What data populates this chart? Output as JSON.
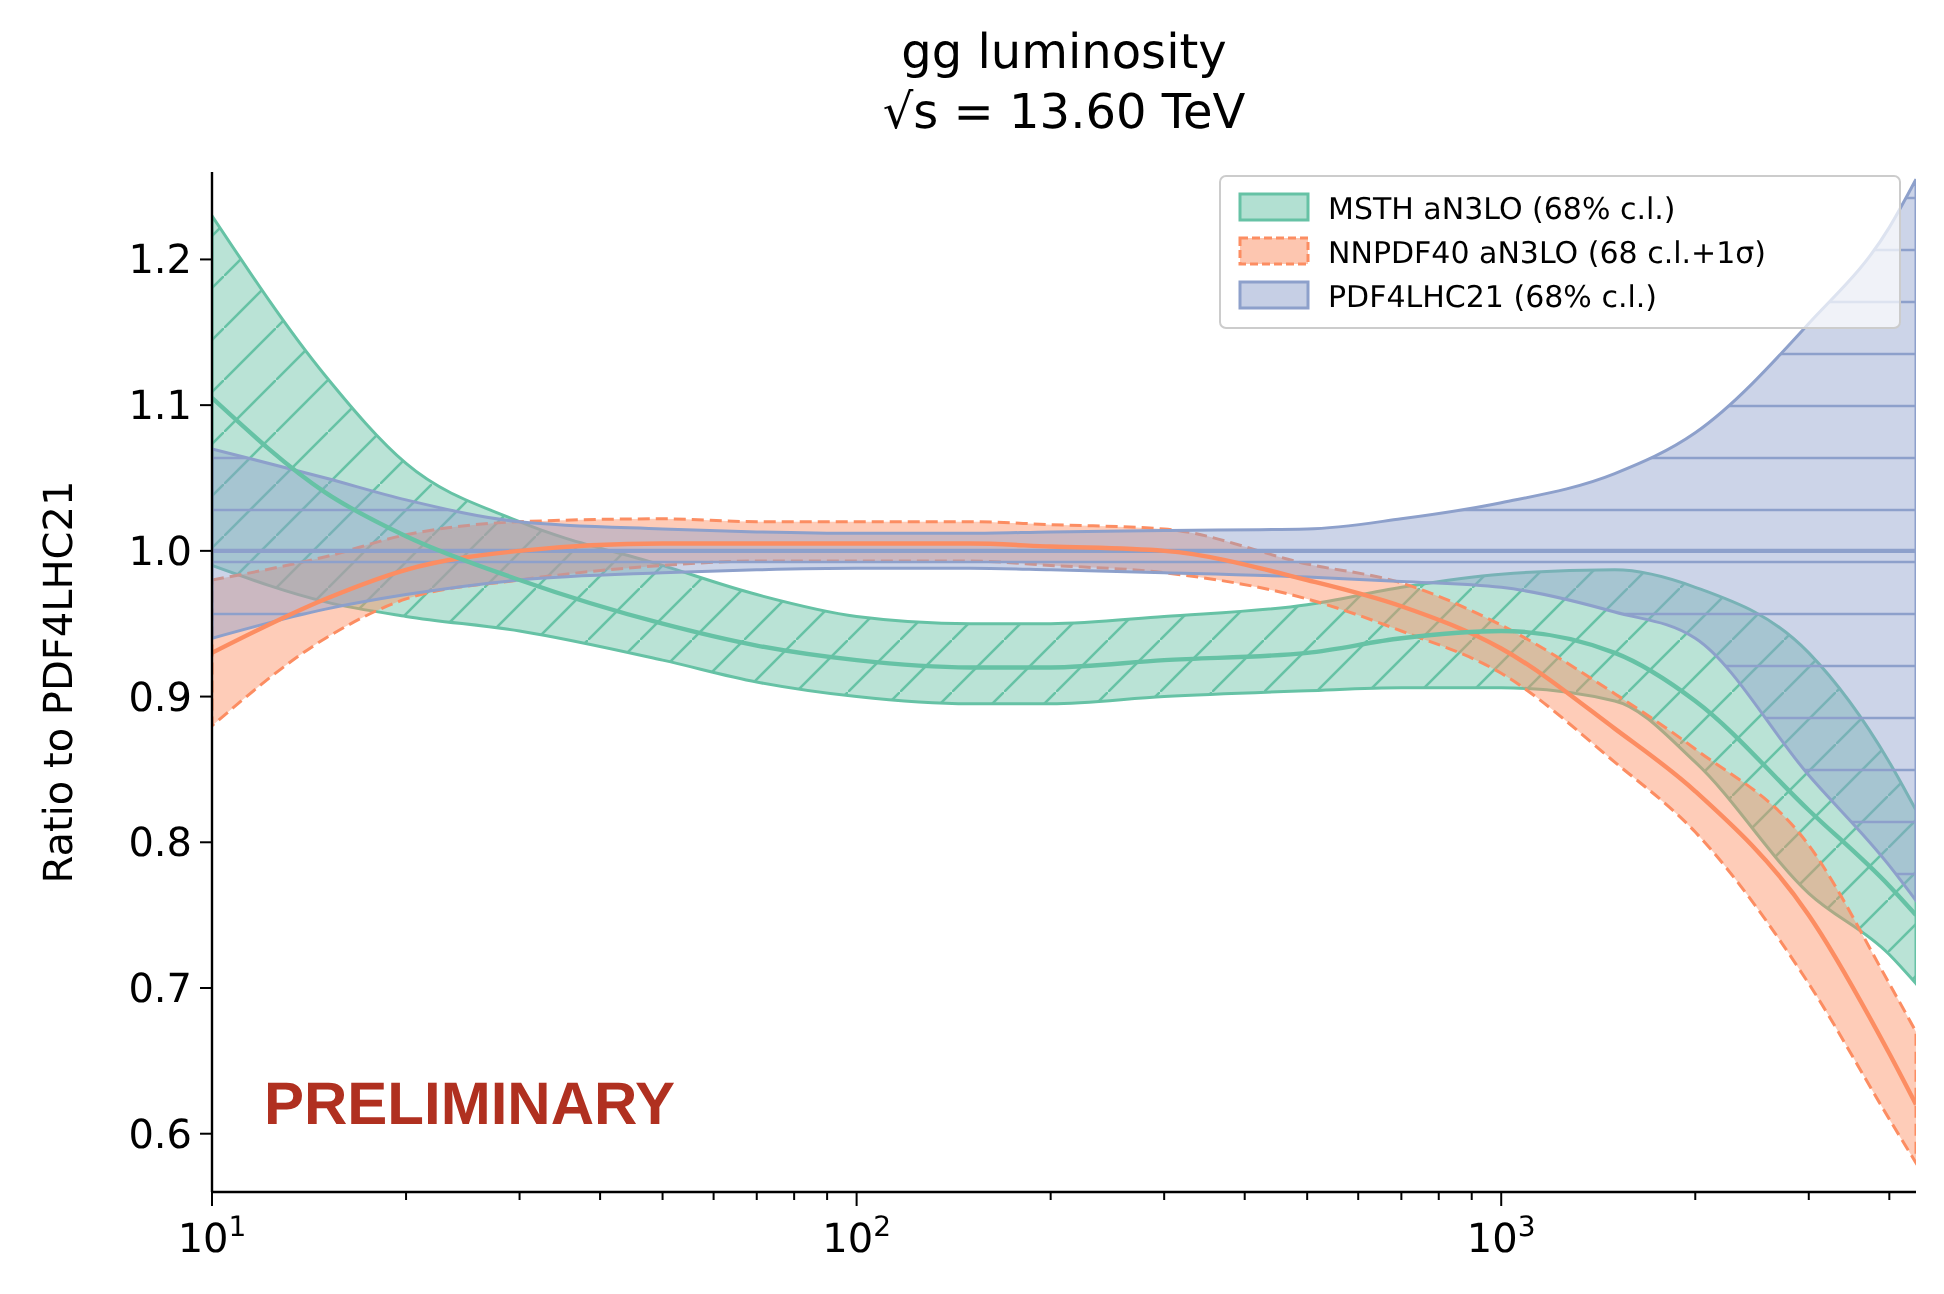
{
  "chart_data": {
    "type": "line",
    "title": "gg luminosity",
    "subtitle": "√s = 13.60 TeV",
    "ylabel": "Ratio to PDF4LHC21",
    "x": [
      10,
      15,
      20,
      30,
      50,
      70,
      100,
      150,
      200,
      300,
      500,
      700,
      1000,
      1500,
      2000,
      3000,
      4000,
      4400
    ],
    "xlim": [
      10,
      4400
    ],
    "log": "x",
    "xticks": [
      {
        "value": 10,
        "label": "10$^{1}$"
      },
      {
        "value": 20,
        "label": null
      },
      {
        "value": 30,
        "label": null
      },
      {
        "value": 40,
        "label": null
      },
      {
        "value": 50,
        "label": null
      },
      {
        "value": 60,
        "label": null
      },
      {
        "value": 70,
        "label": null
      },
      {
        "value": 80,
        "label": null
      },
      {
        "value": 90,
        "label": null
      },
      {
        "value": 100,
        "label": "10$^{2}$"
      },
      {
        "value": 200,
        "label": null
      },
      {
        "value": 300,
        "label": null
      },
      {
        "value": 400,
        "label": null
      },
      {
        "value": 500,
        "label": null
      },
      {
        "value": 600,
        "label": null
      },
      {
        "value": 700,
        "label": null
      },
      {
        "value": 800,
        "label": null
      },
      {
        "value": 900,
        "label": null
      },
      {
        "value": 1000,
        "label": "10$^{3}$"
      },
      {
        "value": 2000,
        "label": null
      },
      {
        "value": 3000,
        "label": null
      },
      {
        "value": 4000,
        "label": null
      }
    ],
    "ylim": [
      0.56,
      1.26
    ],
    "yticks": [
      {
        "value": 0.6,
        "label": "0.6"
      },
      {
        "value": 0.7,
        "label": "0.7"
      },
      {
        "value": 0.8,
        "label": "0.8"
      },
      {
        "value": 0.9,
        "label": "0.9"
      },
      {
        "value": 1,
        "label": "1.0"
      },
      {
        "value": 1.1,
        "label": "1.1"
      },
      {
        "value": 1.2,
        "label": "1.2"
      }
    ],
    "series": [
      {
        "name": "MSTH aN3LO (68% c.l.)",
        "color": "#66c2a5",
        "values": [
          1.105,
          1.04,
          1.01,
          0.98,
          0.95,
          0.935,
          0.925,
          0.92,
          0.92,
          0.925,
          0.93,
          0.94,
          0.945,
          0.93,
          0.897,
          0.822,
          0.77,
          0.75
        ],
        "lower": [
          0.99,
          0.965,
          0.955,
          0.945,
          0.925,
          0.91,
          0.9,
          0.895,
          0.895,
          0.9,
          0.904,
          0.906,
          0.906,
          0.897,
          0.855,
          0.765,
          0.723,
          0.703
        ],
        "upper": [
          1.23,
          1.12,
          1.06,
          1.02,
          0.99,
          0.97,
          0.955,
          0.95,
          0.95,
          0.955,
          0.963,
          0.975,
          0.984,
          0.987,
          0.975,
          0.93,
          0.855,
          0.822
        ]
      },
      {
        "name": "NNPDF40 aN3LO (68 c.l.+1σ)",
        "color": "#fc8d62",
        "values": [
          0.93,
          0.967,
          0.987,
          1.0,
          1.005,
          1.005,
          1.005,
          1.005,
          1.003,
          1.0,
          0.98,
          0.962,
          0.933,
          0.878,
          0.835,
          0.75,
          0.655,
          0.62
        ],
        "lower": [
          0.88,
          0.94,
          0.967,
          0.98,
          0.99,
          0.993,
          0.993,
          0.993,
          0.99,
          0.985,
          0.967,
          0.945,
          0.916,
          0.855,
          0.807,
          0.703,
          0.61,
          0.58
        ],
        "upper": [
          0.98,
          0.996,
          1.011,
          1.02,
          1.022,
          1.02,
          1.02,
          1.02,
          1.018,
          1.015,
          0.991,
          0.978,
          0.949,
          0.902,
          0.864,
          0.798,
          0.703,
          0.67
        ]
      },
      {
        "name": "PDF4LHC21 (68% c.l.)",
        "color": "#8da0cb",
        "values": [
          1,
          1,
          1,
          1,
          1,
          1,
          1,
          1,
          1,
          1,
          1,
          1,
          1,
          1,
          1,
          1,
          1,
          1
        ],
        "lower": [
          0.94,
          0.96,
          0.97,
          0.98,
          0.985,
          0.987,
          0.988,
          0.988,
          0.987,
          0.985,
          0.982,
          0.979,
          0.975,
          0.958,
          0.94,
          0.846,
          0.784,
          0.76
        ],
        "upper": [
          1.07,
          1.05,
          1.035,
          1.02,
          1.015,
          1.013,
          1.012,
          1.012,
          1.013,
          1.014,
          1.015,
          1.022,
          1.033,
          1.053,
          1.081,
          1.156,
          1.222,
          1.255
        ]
      }
    ],
    "legend": "top right",
    "grid": false,
    "annotations": [
      "PRELIMINARY"
    ]
  }
}
